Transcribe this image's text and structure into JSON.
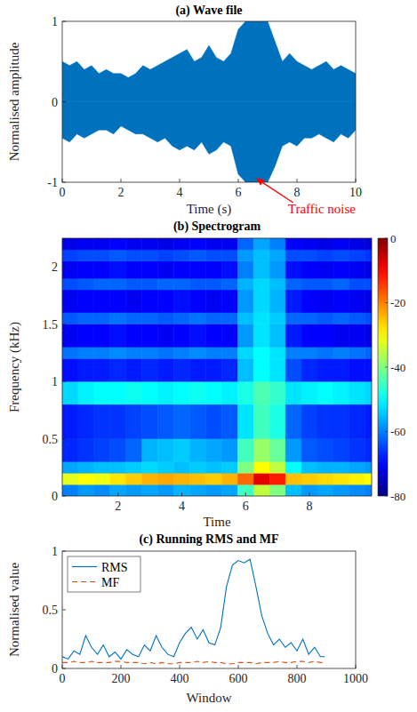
{
  "chart_data": [
    {
      "type": "area",
      "title": "(a) Wave file",
      "x_label": "Time (s)",
      "y_label": "Normalised amplitude",
      "x": [
        0,
        0.25,
        0.5,
        0.75,
        1,
        1.25,
        1.5,
        1.75,
        2,
        2.25,
        2.5,
        2.75,
        3,
        3.25,
        3.5,
        3.75,
        4,
        4.25,
        4.5,
        4.75,
        5,
        5.25,
        5.5,
        5.75,
        6,
        6.25,
        6.5,
        6.75,
        7,
        7.25,
        7.5,
        7.75,
        8,
        8.25,
        8.5,
        8.75,
        9,
        9.25,
        9.5,
        9.75,
        10
      ],
      "series": [
        {
          "color": "#0072bd",
          "values": [
            0.5,
            0.45,
            0.5,
            0.4,
            0.45,
            0.35,
            0.4,
            0.35,
            0.35,
            0.3,
            0.35,
            0.45,
            0.4,
            0.45,
            0.5,
            0.55,
            0.6,
            0.65,
            0.5,
            0.55,
            0.7,
            0.55,
            0.5,
            0.6,
            0.9,
            1.0,
            1.0,
            1.0,
            1.0,
            0.75,
            0.5,
            0.6,
            0.5,
            0.45,
            0.4,
            0.45,
            0.5,
            0.4,
            0.45,
            0.4,
            0.35
          ]
        },
        {
          "color": "#0072bd",
          "values": [
            -0.45,
            -0.5,
            -0.4,
            -0.45,
            -0.4,
            -0.35,
            -0.35,
            -0.4,
            -0.3,
            -0.35,
            -0.4,
            -0.4,
            -0.45,
            -0.5,
            -0.45,
            -0.55,
            -0.6,
            -0.55,
            -0.6,
            -0.5,
            -0.65,
            -0.6,
            -0.5,
            -0.55,
            -0.9,
            -1.0,
            -1.0,
            -1.0,
            -1.0,
            -0.8,
            -0.55,
            -0.5,
            -0.55,
            -0.45,
            -0.45,
            -0.4,
            -0.45,
            -0.5,
            -0.4,
            -0.45,
            -0.35
          ]
        }
      ],
      "xlim": [
        0,
        10
      ],
      "xticks": [
        0,
        2,
        4,
        6,
        8,
        10
      ],
      "ylim": [
        -1,
        1
      ],
      "yticks": [
        -1,
        0,
        1
      ],
      "grid": false,
      "annotations": [
        {
          "text": "Traffic noise",
          "x": 6.6,
          "y": -0.95,
          "color": "#ff0000"
        }
      ]
    },
    {
      "type": "heatmap",
      "title": "(b) Spectrogram",
      "x_label": "Time",
      "y_label": "Frequency (kHz)",
      "x_edges": [
        0.25,
        0.75,
        1.25,
        1.75,
        2.25,
        2.75,
        3.25,
        3.75,
        4.25,
        4.75,
        5.25,
        5.75,
        6.25,
        6.75,
        7.25,
        7.75,
        8.25,
        8.75,
        9.25,
        9.75,
        9.95
      ],
      "y_edges": [
        0,
        0.1,
        0.2,
        0.3,
        0.5,
        0.8,
        1.0,
        1.2,
        1.3,
        1.5,
        1.6,
        1.8,
        1.9,
        2.05,
        2.15,
        2.25
      ],
      "cells": [
        [
          -60,
          -58,
          -59,
          -57,
          -58,
          -57,
          -58,
          -56,
          -57,
          -58,
          -57,
          -45,
          -35,
          -40,
          -55,
          -58,
          -57,
          -58,
          -59,
          -60
        ],
        [
          -32,
          -30,
          -31,
          -28,
          -26,
          -24,
          -23,
          -24,
          -25,
          -26,
          -24,
          -18,
          -8,
          -12,
          -25,
          -26,
          -27,
          -28,
          -29,
          -30
        ],
        [
          -57,
          -56,
          -55,
          -55,
          -54,
          -53,
          -54,
          -55,
          -54,
          -55,
          -54,
          -40,
          -30,
          -35,
          -50,
          -55,
          -56,
          -56,
          -57,
          -58
        ],
        [
          -67,
          -66,
          -65,
          -64,
          -62,
          -56,
          -55,
          -54,
          -56,
          -57,
          -58,
          -45,
          -38,
          -42,
          -58,
          -63,
          -64,
          -65,
          -66,
          -67
        ],
        [
          -68,
          -67,
          -66,
          -66,
          -65,
          -64,
          -63,
          -62,
          -63,
          -64,
          -63,
          -52,
          -45,
          -48,
          -62,
          -65,
          -66,
          -66,
          -67,
          -68
        ],
        [
          -53,
          -51,
          -50,
          -50,
          -49,
          -50,
          -51,
          -50,
          -49,
          -50,
          -51,
          -48,
          -44,
          -46,
          -52,
          -51,
          -50,
          -51,
          -52,
          -53
        ],
        [
          -69,
          -68,
          -68,
          -67,
          -68,
          -67,
          -68,
          -67,
          -68,
          -68,
          -67,
          -55,
          -50,
          -52,
          -64,
          -67,
          -68,
          -68,
          -69,
          -69
        ],
        [
          -61,
          -60,
          -60,
          -59,
          -60,
          -60,
          -61,
          -60,
          -59,
          -60,
          -60,
          -53,
          -50,
          -52,
          -60,
          -60,
          -61,
          -60,
          -61,
          -62
        ],
        [
          -71,
          -70,
          -70,
          -69,
          -70,
          -70,
          -71,
          -70,
          -69,
          -70,
          -70,
          -58,
          -52,
          -55,
          -68,
          -70,
          -70,
          -71,
          -71,
          -72
        ],
        [
          -63,
          -62,
          -62,
          -61,
          -62,
          -62,
          -63,
          -62,
          -61,
          -62,
          -62,
          -55,
          -52,
          -54,
          -62,
          -62,
          -63,
          -62,
          -63,
          -64
        ],
        [
          -71,
          -70,
          -70,
          -70,
          -71,
          -70,
          -70,
          -69,
          -70,
          -71,
          -70,
          -58,
          -53,
          -56,
          -68,
          -70,
          -71,
          -70,
          -71,
          -72
        ],
        [
          -64,
          -63,
          -62,
          -62,
          -63,
          -63,
          -62,
          -62,
          -63,
          -63,
          -62,
          -56,
          -53,
          -55,
          -62,
          -63,
          -63,
          -62,
          -64,
          -64
        ],
        [
          -71,
          -70,
          -70,
          -69,
          -70,
          -70,
          -71,
          -70,
          -70,
          -70,
          -69,
          -60,
          -55,
          -58,
          -69,
          -70,
          -71,
          -70,
          -71,
          -72
        ],
        [
          -65,
          -64,
          -64,
          -63,
          -64,
          -64,
          -65,
          -64,
          -63,
          -64,
          -64,
          -58,
          -55,
          -57,
          -64,
          -64,
          -65,
          -64,
          -65,
          -66
        ],
        [
          -72,
          -71,
          -71,
          -70,
          -71,
          -71,
          -72,
          -71,
          -70,
          -71,
          -71,
          -62,
          -57,
          -60,
          -70,
          -71,
          -72,
          -71,
          -72,
          -73
        ]
      ],
      "xlim": [
        0.25,
        9.95
      ],
      "xticks": [
        2,
        4,
        6,
        8
      ],
      "ylim": [
        0,
        2.25
      ],
      "yticks": [
        0,
        0.5,
        1,
        1.5,
        2
      ],
      "colorbar": {
        "lim": [
          -80,
          0
        ],
        "ticks": [
          0,
          -20,
          -40,
          -60,
          -80
        ]
      },
      "grid": false
    },
    {
      "type": "line",
      "title": "(c) Running RMS and MF",
      "x_label": "Window",
      "y_label": "Normalised value",
      "x": [
        0,
        20,
        40,
        60,
        80,
        100,
        120,
        140,
        160,
        180,
        200,
        220,
        240,
        260,
        280,
        300,
        320,
        340,
        360,
        380,
        400,
        420,
        440,
        460,
        480,
        500,
        520,
        540,
        560,
        580,
        600,
        620,
        640,
        660,
        680,
        700,
        720,
        740,
        760,
        780,
        800,
        820,
        840,
        860,
        880,
        895
      ],
      "series": [
        {
          "name": "RMS",
          "color": "#0072bd",
          "line_style": "solid",
          "values": [
            0.1,
            0.08,
            0.15,
            0.12,
            0.28,
            0.18,
            0.12,
            0.2,
            0.1,
            0.14,
            0.08,
            0.16,
            0.12,
            0.1,
            0.2,
            0.15,
            0.28,
            0.18,
            0.12,
            0.1,
            0.22,
            0.3,
            0.35,
            0.25,
            0.33,
            0.22,
            0.2,
            0.35,
            0.7,
            0.88,
            0.92,
            0.9,
            0.93,
            0.7,
            0.45,
            0.3,
            0.2,
            0.25,
            0.18,
            0.22,
            0.15,
            0.25,
            0.12,
            0.18,
            0.1,
            0.1
          ]
        },
        {
          "name": "MF",
          "color": "#d95319",
          "line_style": "dashed",
          "values": [
            0.05,
            0.05,
            0.06,
            0.05,
            0.05,
            0.06,
            0.05,
            0.05,
            0.05,
            0.06,
            0.06,
            0.05,
            0.05,
            0.05,
            0.04,
            0.05,
            0.04,
            0.05,
            0.04,
            0.04,
            0.05,
            0.05,
            0.05,
            0.06,
            0.05,
            0.06,
            0.05,
            0.05,
            0.04,
            0.04,
            0.05,
            0.05,
            0.05,
            0.04,
            0.05,
            0.05,
            0.05,
            0.06,
            0.05,
            0.05,
            0.06,
            0.06,
            0.05,
            0.06,
            0.05,
            0.05
          ]
        }
      ],
      "xlim": [
        0,
        1000
      ],
      "xticks": [
        0,
        200,
        400,
        600,
        800,
        1000
      ],
      "ylim": [
        0,
        1
      ],
      "yticks": [
        0,
        0.5,
        1
      ],
      "legend": "top-left",
      "grid": false
    }
  ]
}
